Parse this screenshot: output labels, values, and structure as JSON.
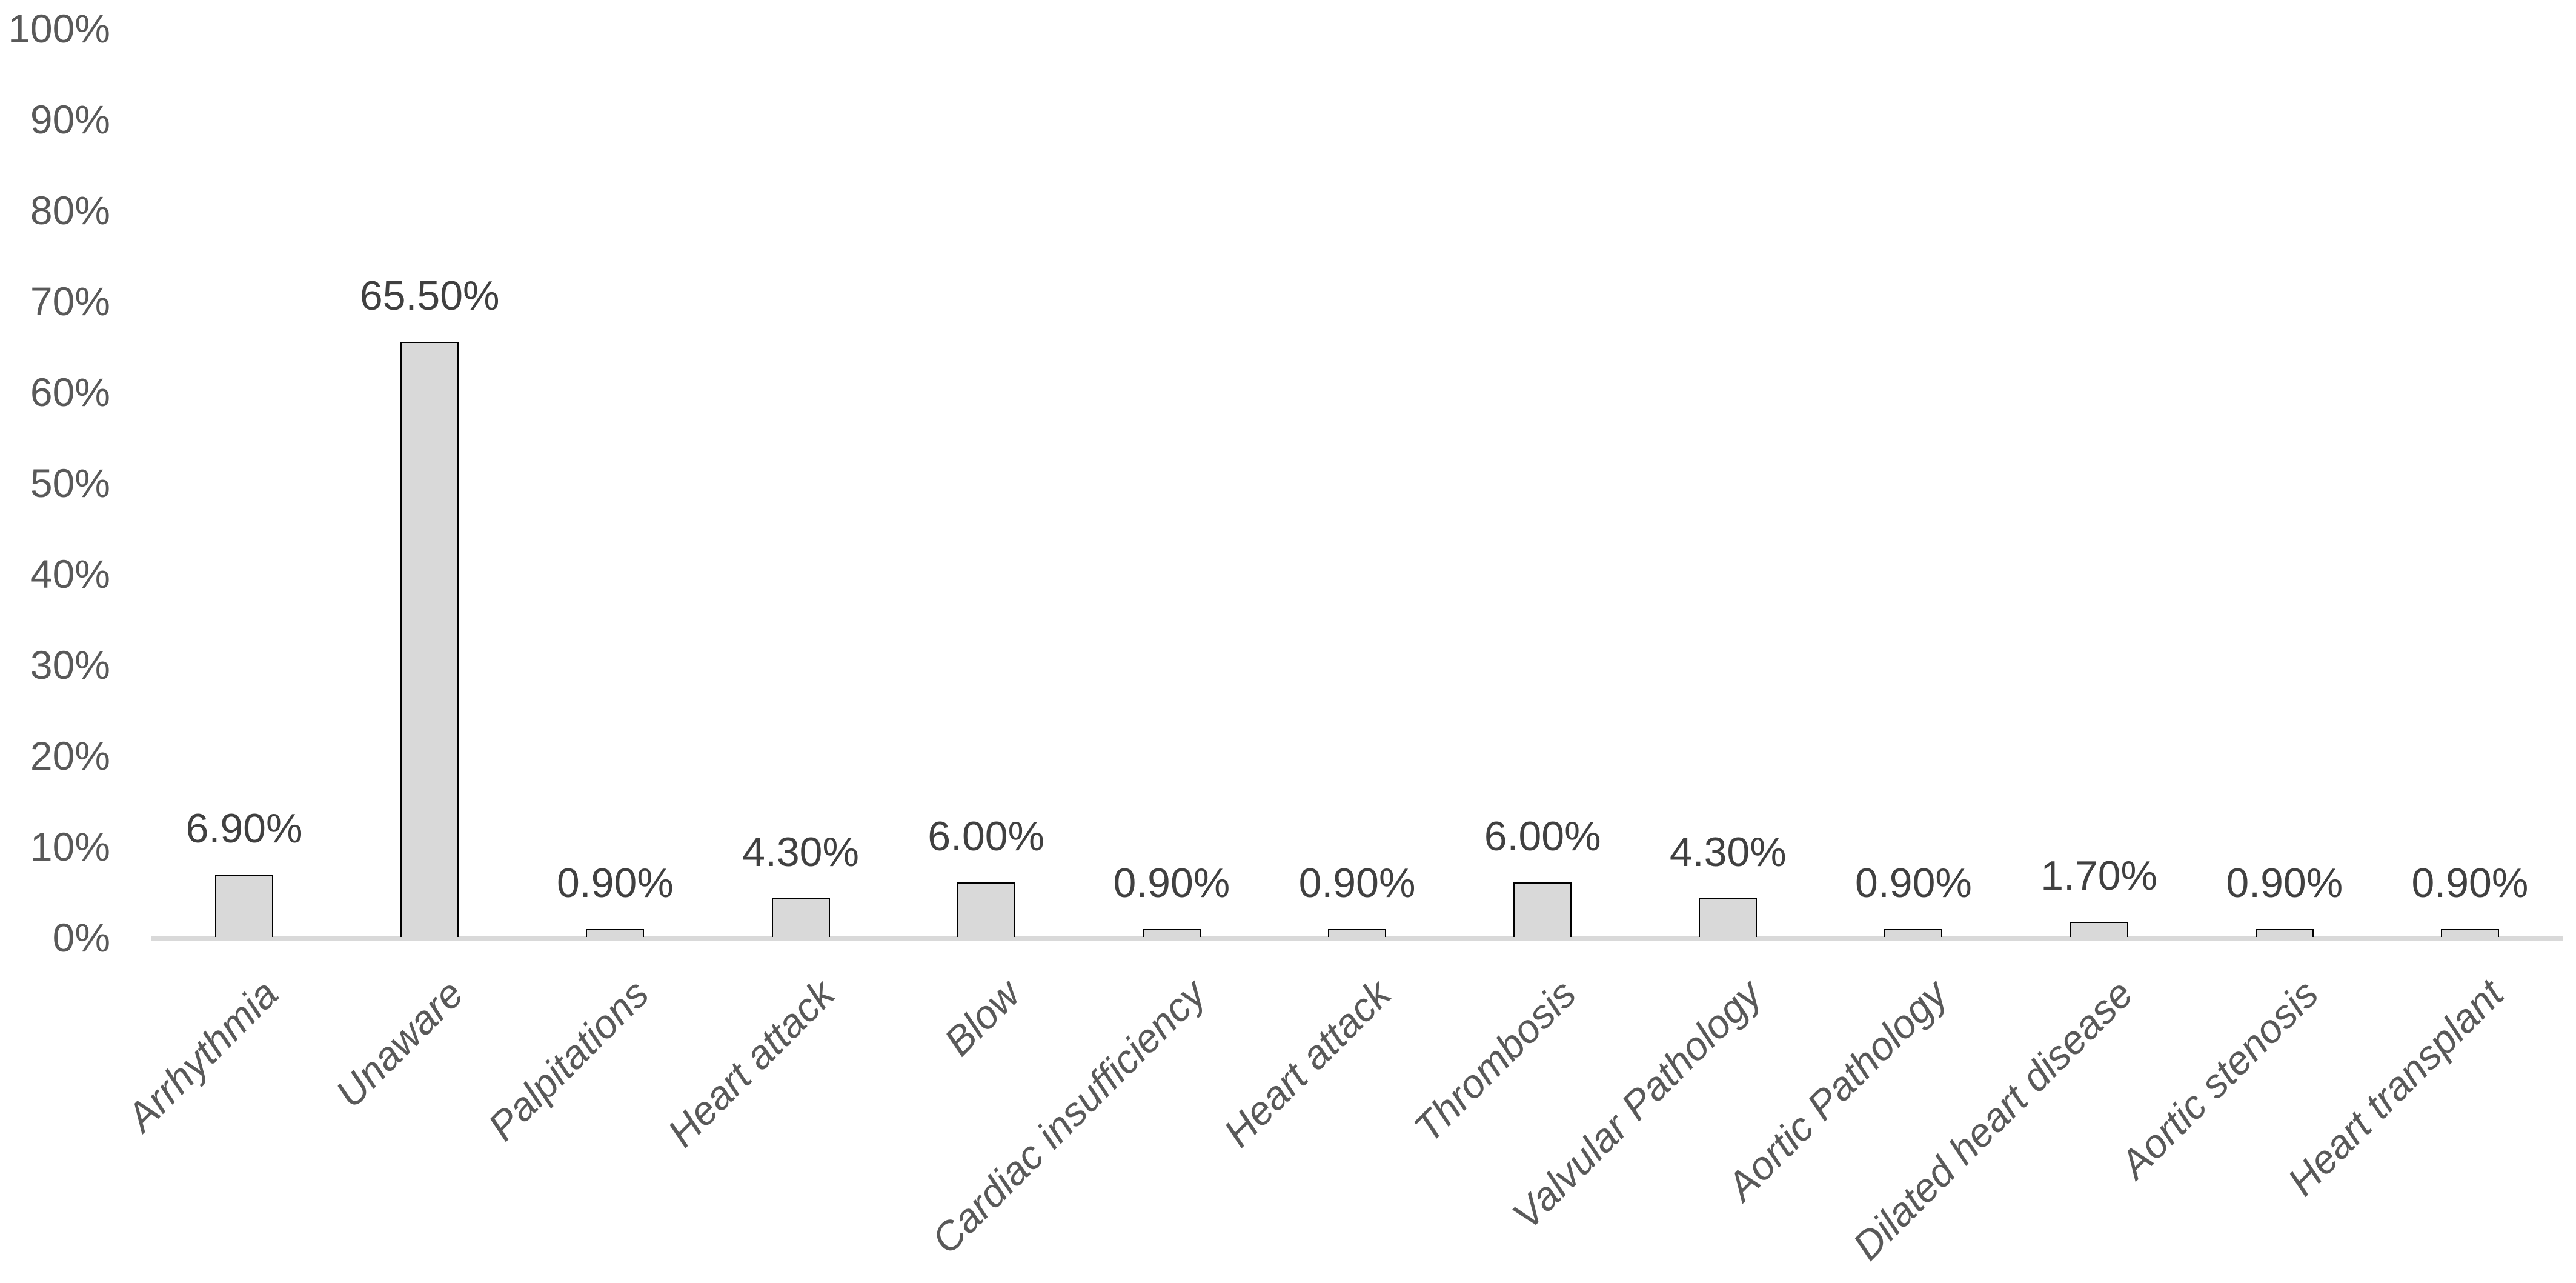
{
  "chart_data": {
    "type": "bar",
    "title": "",
    "xlabel": "",
    "ylabel": "",
    "categories": [
      "Arrhythmia",
      "Unaware",
      "Palpitations",
      "Heart attack",
      "Blow",
      "Cardiac insufficiency",
      "Heart attack",
      "Thrombosis",
      "Valvular Pathology",
      "Aortic Pathology",
      "Dilated heart disease",
      "Aortic stenosis",
      "Heart transplant"
    ],
    "values": [
      6.9,
      65.5,
      0.9,
      4.3,
      6.0,
      0.9,
      0.9,
      6.0,
      4.3,
      0.9,
      1.7,
      0.9,
      0.9
    ],
    "data_labels": [
      "6.90%",
      "65.50%",
      "0.90%",
      "4.30%",
      "6.00%",
      "0.90%",
      "0.90%",
      "6.00%",
      "4.30%",
      "0.90%",
      "1.70%",
      "0.90%",
      "0.90%"
    ],
    "ylim": [
      0,
      100
    ],
    "y_tick_step": 10,
    "y_tick_labels": [
      "0%",
      "10%",
      "20%",
      "30%",
      "40%",
      "50%",
      "60%",
      "70%",
      "80%",
      "90%",
      "100%"
    ],
    "grid": false,
    "legend": false,
    "colors": {
      "bar_fill": "#d9d9d9",
      "bar_border": "#000000",
      "axis_line": "#d9d9d9",
      "axis_text": "#595959",
      "data_label_text": "#404040"
    }
  }
}
